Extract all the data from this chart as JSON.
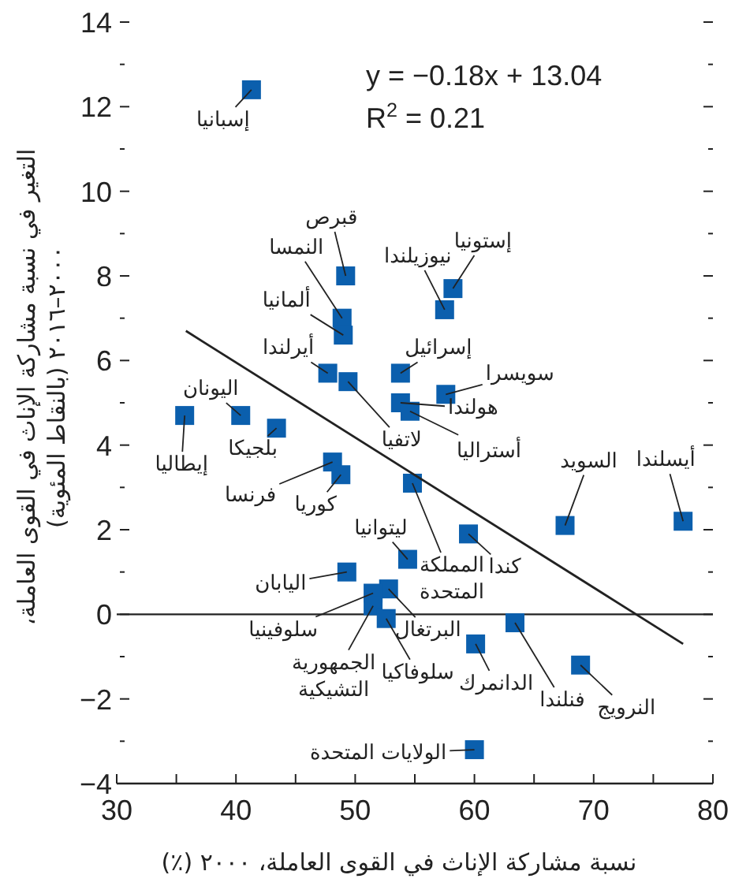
{
  "chart_data": {
    "type": "scatter",
    "xlabel": "نسبة مشاركة الإناث في القوى العاملة، ٢٠٠٠ (٪)",
    "ylabel": "التغير في نسبة مشاركة الإناث في القوى العاملة، ٢٠٠٠–٢٠١٦ (بالنقاط المئوية)",
    "xlim": [
      30,
      80
    ],
    "ylim": [
      -4,
      14
    ],
    "xticks": [
      30,
      {
        "value": 35,
        "label": null
      },
      40,
      {
        "value": 45,
        "label": null
      },
      50,
      {
        "value": 55,
        "label": null
      },
      60,
      {
        "value": 65,
        "label": null
      },
      70,
      {
        "value": 75,
        "label": null
      },
      80
    ],
    "yticks": [
      -4,
      {
        "value": -3,
        "label": null
      },
      -2,
      {
        "value": -1,
        "label": null
      },
      0,
      {
        "value": 1,
        "label": null
      },
      2,
      {
        "value": 3,
        "label": null
      },
      4,
      {
        "value": 5,
        "label": null
      },
      6,
      {
        "value": 7,
        "label": null
      },
      8,
      {
        "value": 9,
        "label": null
      },
      10,
      {
        "value": 11,
        "label": null
      },
      12,
      {
        "value": 13,
        "label": null
      },
      14
    ],
    "grid": false,
    "series": [
      {
        "type": "scatter",
        "color": "#0b5fad",
        "marker": "square",
        "x": [
          41.3,
          49.2,
          48.9,
          49.0,
          57.5,
          58.2,
          47.7,
          49.4,
          53.8,
          57.6,
          53.8,
          54.6,
          40.4,
          35.7,
          43.4,
          48.1,
          48.8,
          54.8,
          67.6,
          77.5,
          59.5,
          54.4,
          49.3,
          52.8,
          51.5,
          51.5,
          52.6,
          63.4,
          60.1,
          68.9,
          60.0
        ],
        "values": [
          12.4,
          8.0,
          7.0,
          6.6,
          7.2,
          7.7,
          5.7,
          5.5,
          5.7,
          5.2,
          5.0,
          4.8,
          4.7,
          4.7,
          4.4,
          3.6,
          3.3,
          3.1,
          2.1,
          2.2,
          1.9,
          1.3,
          1.0,
          0.6,
          0.5,
          0.2,
          -0.1,
          -0.2,
          -0.7,
          -1.2,
          -3.2
        ]
      },
      {
        "type": "line",
        "color": "#222222",
        "x": [
          35.8,
          77.5
        ],
        "values": [
          6.7,
          -0.7
        ]
      }
    ],
    "ref_lines": [
      {
        "axis": "y",
        "value": 0,
        "color": "#222222"
      }
    ],
    "annotations": [
      {
        "text": "إسبانيا",
        "x": 41.3,
        "y": 12.4
      },
      {
        "text": "قبرص",
        "x": 49.2,
        "y": 8.0
      },
      {
        "text": "النمسا",
        "x": 48.9,
        "y": 7.0
      },
      {
        "text": "ألمانيا",
        "x": 49.0,
        "y": 6.6
      },
      {
        "text": "نيوزيلندا",
        "x": 57.5,
        "y": 7.2
      },
      {
        "text": "إستونيا",
        "x": 58.2,
        "y": 7.7
      },
      {
        "text": "أيرلندا",
        "x": 47.7,
        "y": 5.7
      },
      {
        "text": "لاتفيا",
        "x": 49.4,
        "y": 5.5
      },
      {
        "text": "إسرائيل",
        "x": 53.8,
        "y": 5.7
      },
      {
        "text": "سويسرا",
        "x": 57.6,
        "y": 5.2
      },
      {
        "text": "هولندا",
        "x": 53.8,
        "y": 5.0
      },
      {
        "text": "أستراليا",
        "x": 54.6,
        "y": 4.8
      },
      {
        "text": "اليونان",
        "x": 40.4,
        "y": 4.7
      },
      {
        "text": "إيطاليا",
        "x": 35.7,
        "y": 4.7
      },
      {
        "text": "بلجيكا",
        "x": 43.4,
        "y": 4.4
      },
      {
        "text": "فرنسا",
        "x": 48.1,
        "y": 3.6
      },
      {
        "text": "كوريا",
        "x": 48.8,
        "y": 3.3
      },
      {
        "text": "المملكة المتحدة",
        "x": 54.8,
        "y": 3.1
      },
      {
        "text": "السويد",
        "x": 67.6,
        "y": 2.1
      },
      {
        "text": "أيسلندا",
        "x": 77.5,
        "y": 2.2
      },
      {
        "text": "كندا",
        "x": 59.5,
        "y": 1.9
      },
      {
        "text": "ليتوانيا",
        "x": 54.4,
        "y": 1.3
      },
      {
        "text": "اليابان",
        "x": 49.3,
        "y": 1.0
      },
      {
        "text": "البرتغال",
        "x": 52.8,
        "y": 0.6
      },
      {
        "text": "سلوفينيا",
        "x": 51.5,
        "y": 0.5
      },
      {
        "text": "الجمهورية التشيكية",
        "x": 51.5,
        "y": 0.2
      },
      {
        "text": "سلوفاكيا",
        "x": 52.6,
        "y": -0.1
      },
      {
        "text": "فنلندا",
        "x": 63.4,
        "y": -0.2
      },
      {
        "text": "الدانمرك",
        "x": 60.1,
        "y": -0.7
      },
      {
        "text": "النرويج",
        "x": 68.9,
        "y": -1.2
      },
      {
        "text": "الولايات المتحدة",
        "x": 60.0,
        "y": -3.2
      },
      "y = −0.18x + 13.04",
      "R$^{2}$ = 0.21"
    ]
  }
}
